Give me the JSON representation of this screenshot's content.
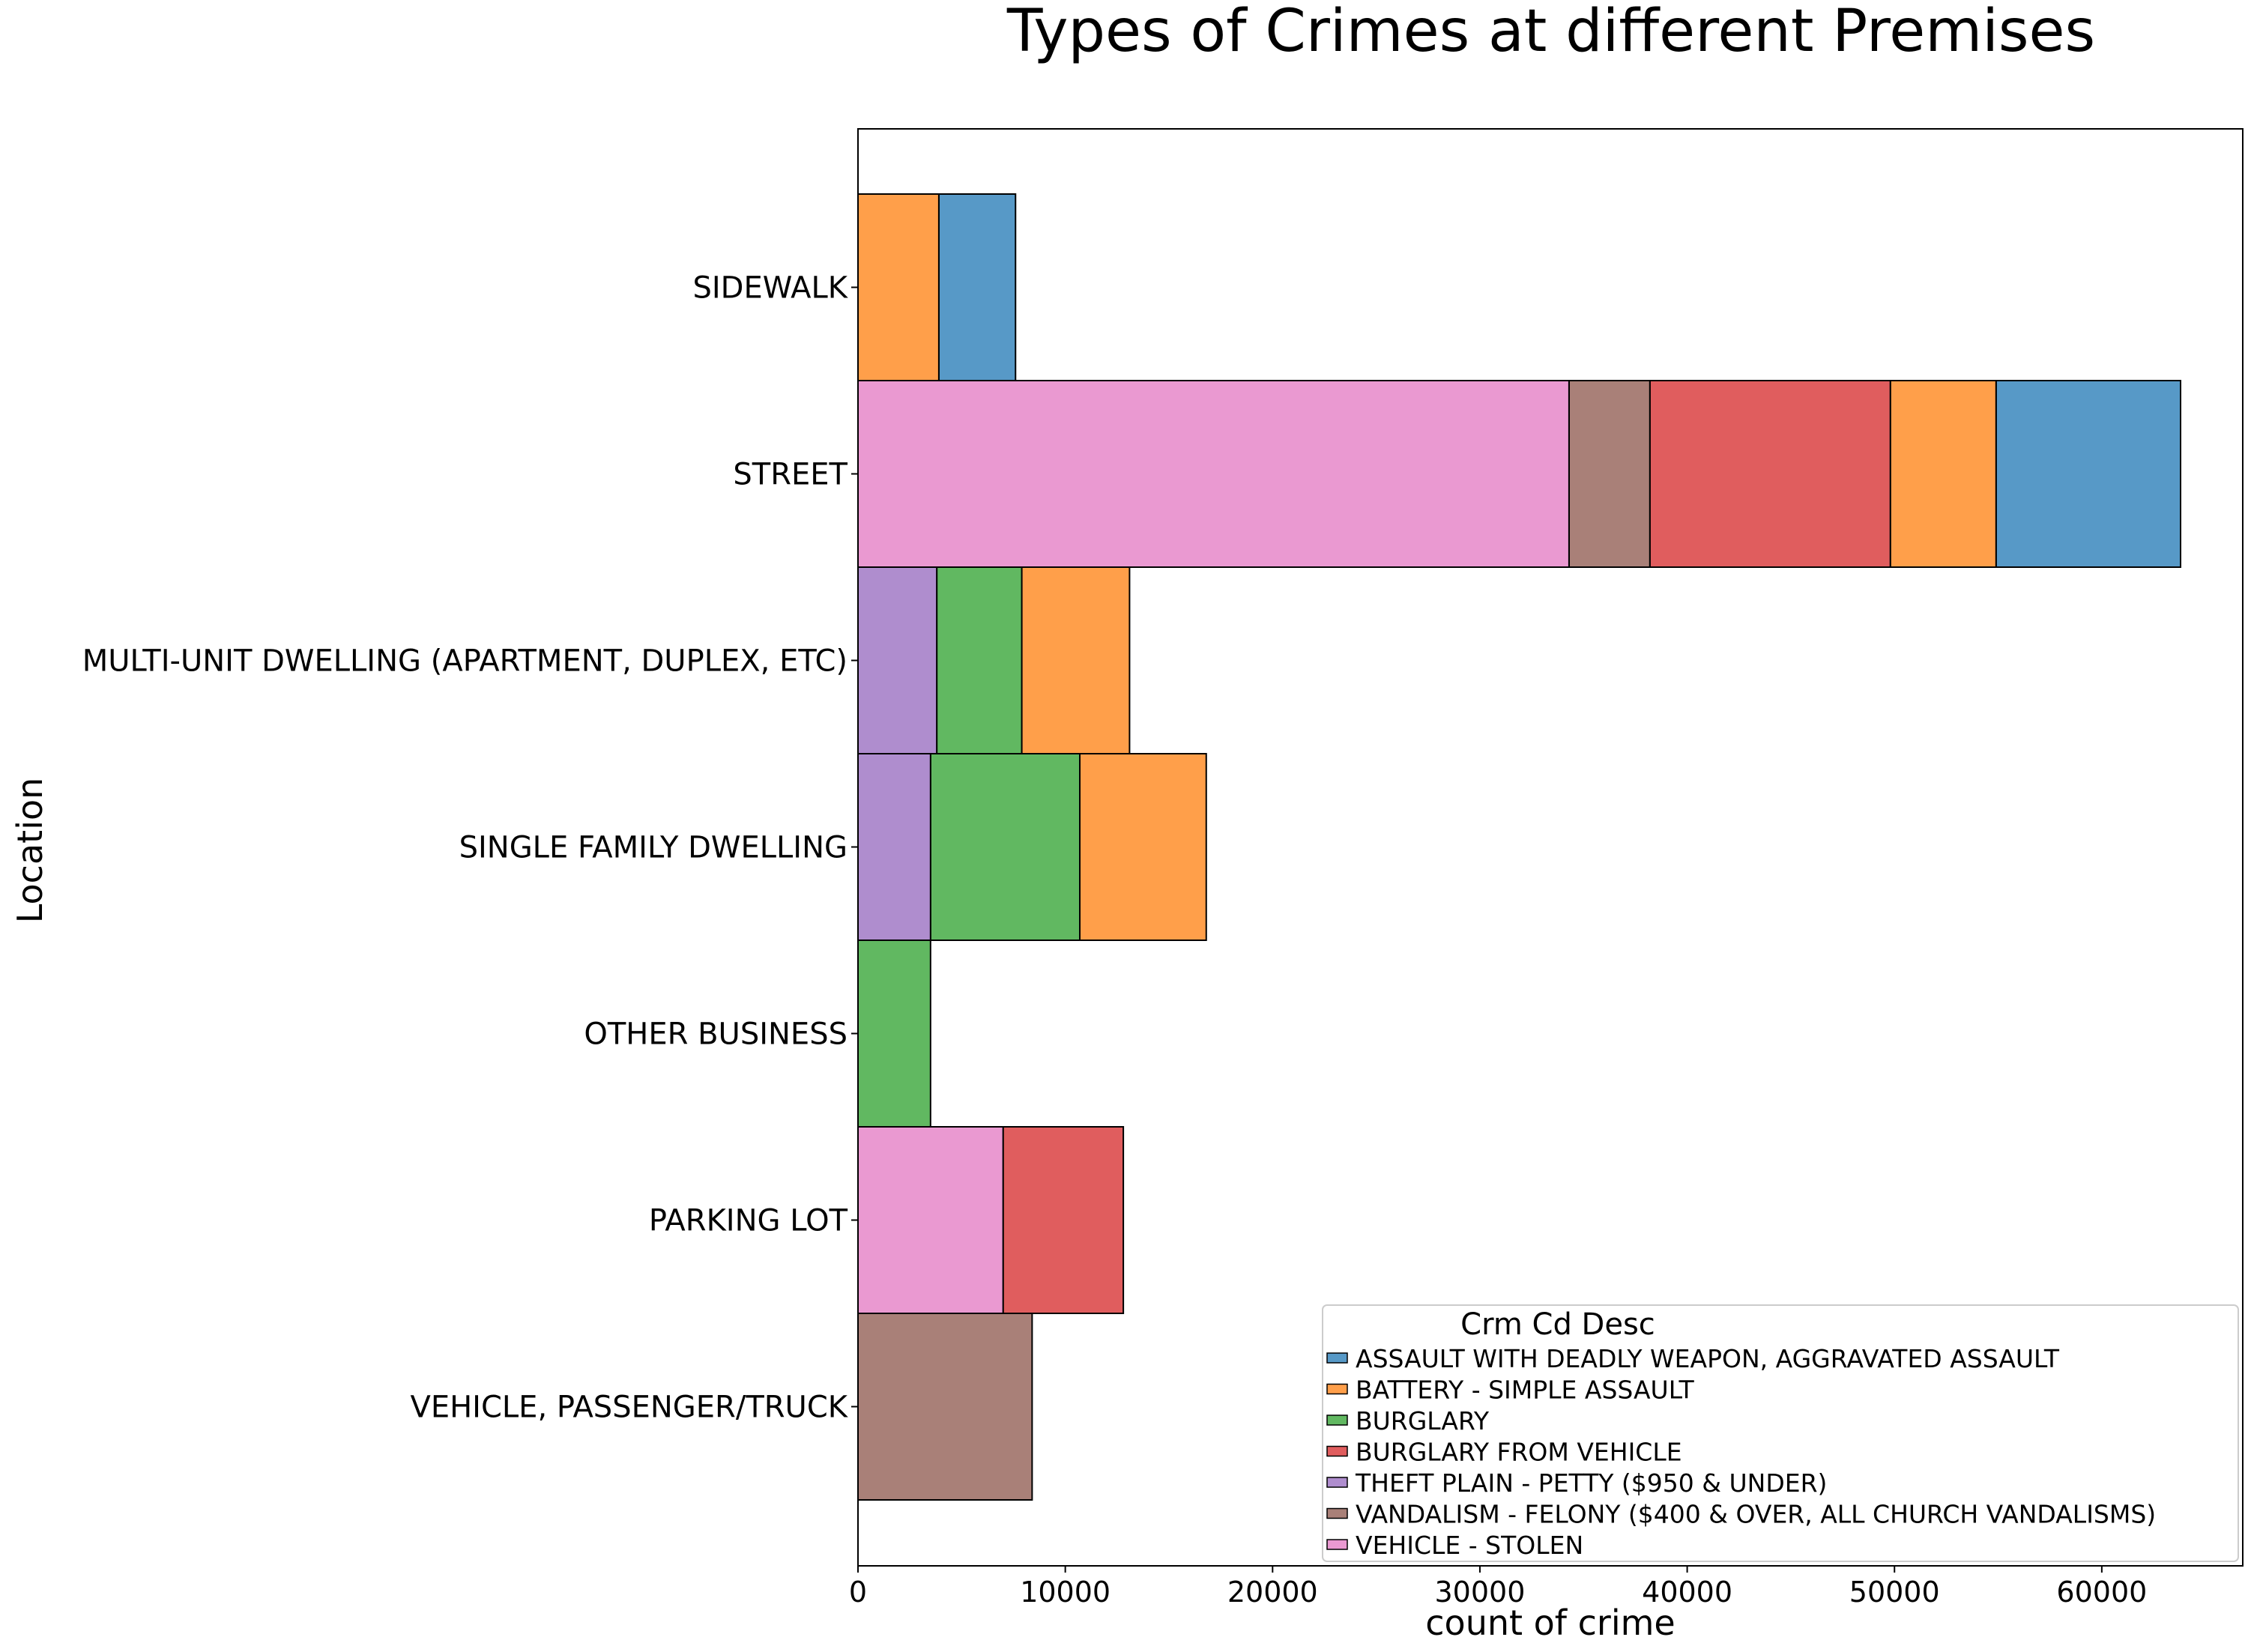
{
  "chart_data": {
    "type": "bar",
    "orientation": "horizontal",
    "stacking": "overlapping histogram layers",
    "title": "Types of Crimes at different Premises",
    "xlabel": "count of crime",
    "ylabel": "Location",
    "xlim": [
      0,
      66800
    ],
    "xticks": [
      0,
      10000,
      20000,
      30000,
      40000,
      50000,
      60000
    ],
    "categories": [
      "SIDEWALK",
      "STREET",
      "MULTI-UNIT DWELLING (APARTMENT, DUPLEX, ETC)",
      "SINGLE FAMILY DWELLING",
      "OTHER BUSINESS",
      "PARKING LOT",
      "VEHICLE, PASSENGER/TRUCK"
    ],
    "legend": {
      "title": "Crm Cd Desc",
      "position": "lower right"
    },
    "grid": false,
    "series": [
      {
        "name": "ASSAULT WITH DEADLY WEAPON, AGGRAVATED ASSAULT",
        "color": "#1f77b4",
        "segments": [
          {
            "category": "SIDEWALK",
            "start": 3900,
            "end": 7600
          },
          {
            "category": "STREET",
            "start": 54900,
            "end": 63800
          }
        ]
      },
      {
        "name": "BATTERY - SIMPLE ASSAULT",
        "color": "#ff7f0e",
        "segments": [
          {
            "category": "SIDEWALK",
            "start": 0,
            "end": 3900
          },
          {
            "category": "STREET",
            "start": 49800,
            "end": 54900
          },
          {
            "category": "MULTI-UNIT DWELLING (APARTMENT, DUPLEX, ETC)",
            "start": 7900,
            "end": 13100
          },
          {
            "category": "SINGLE FAMILY DWELLING",
            "start": 10700,
            "end": 16800
          }
        ]
      },
      {
        "name": "BURGLARY",
        "color": "#2ca02c",
        "segments": [
          {
            "category": "MULTI-UNIT DWELLING (APARTMENT, DUPLEX, ETC)",
            "start": 3800,
            "end": 7900
          },
          {
            "category": "SINGLE FAMILY DWELLING",
            "start": 3500,
            "end": 10700
          },
          {
            "category": "OTHER BUSINESS",
            "start": 0,
            "end": 3500
          }
        ]
      },
      {
        "name": "BURGLARY FROM VEHICLE",
        "color": "#d62728",
        "segments": [
          {
            "category": "STREET",
            "start": 38200,
            "end": 49800
          },
          {
            "category": "PARKING LOT",
            "start": 7000,
            "end": 12800
          }
        ]
      },
      {
        "name": "THEFT PLAIN - PETTY ($950 & UNDER)",
        "color": "#9467bd",
        "segments": [
          {
            "category": "MULTI-UNIT DWELLING (APARTMENT, DUPLEX, ETC)",
            "start": 0,
            "end": 3800
          },
          {
            "category": "SINGLE FAMILY DWELLING",
            "start": 0,
            "end": 3500
          }
        ]
      },
      {
        "name": "VANDALISM - FELONY ($400 & OVER, ALL CHURCH VANDALISMS)",
        "color": "#8c564b",
        "segments": [
          {
            "category": "STREET",
            "start": 34300,
            "end": 38200
          },
          {
            "category": "VEHICLE, PASSENGER/TRUCK",
            "start": 0,
            "end": 8400
          }
        ]
      },
      {
        "name": "VEHICLE - STOLEN",
        "color": "#e377c2",
        "segments": [
          {
            "category": "STREET",
            "start": 0,
            "end": 34300
          },
          {
            "category": "PARKING LOT",
            "start": 0,
            "end": 7000
          }
        ]
      }
    ]
  }
}
